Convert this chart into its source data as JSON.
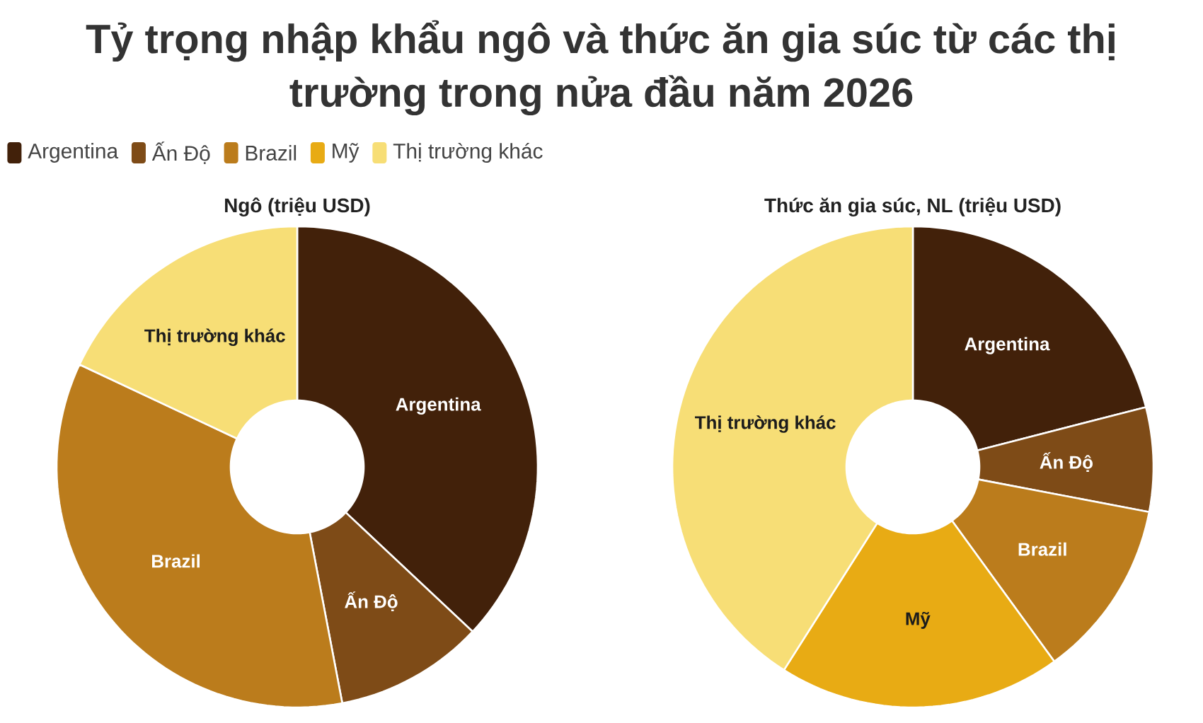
{
  "chart_data": [
    {
      "type": "donut",
      "title": "Tỷ trọng nhập khẩu ngô và thức ăn gia súc từ các thị trường trong nửa đầu năm 2026",
      "subtitle": "Ngô (triệu USD)",
      "categories": [
        "Argentina",
        "Ấn Độ",
        "Brazil",
        "Thị trường khác"
      ],
      "values": [
        37,
        10,
        35,
        18
      ],
      "colors": [
        "#42210a",
        "#7e4b17",
        "#bb7c1c",
        "#f7de76"
      ]
    },
    {
      "type": "donut",
      "title": "Thức ăn gia súc, NL (triệu USD)",
      "categories": [
        "Argentina",
        "Ấn Độ",
        "Brazil",
        "Mỹ",
        "Thị trường khác"
      ],
      "values": [
        21,
        7,
        12,
        19,
        41
      ],
      "colors": [
        "#42210a",
        "#7e4b17",
        "#bb7c1c",
        "#e8ab14",
        "#f7de76"
      ],
      "legend": "top left"
    }
  ]
}
